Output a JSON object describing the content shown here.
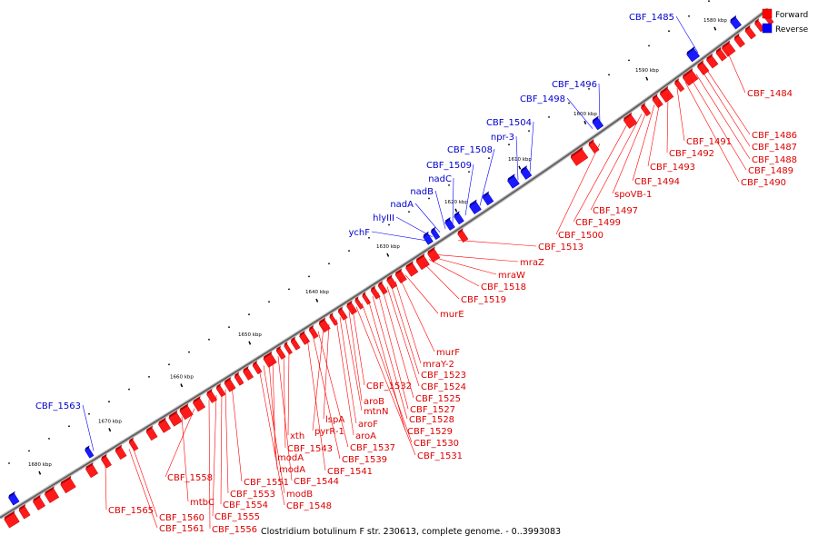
{
  "caption": "Clostridium botulinum F str. 230613, complete genome. - 0..3993083",
  "legend": {
    "forward": {
      "label": "Forward",
      "color": "#ff0000"
    },
    "reverse": {
      "label": "Reverse",
      "color": "#0000ff"
    }
  },
  "kbp_ticks": [
    "1580 kbp",
    "1590 kbp",
    "1600 kbp",
    "1610 kbp",
    "1620 kbp",
    "1630 kbp",
    "1640 kbp",
    "1650 kbp",
    "1660 kbp",
    "1670 kbp",
    "1680 kbp"
  ],
  "reverse_genes": [
    {
      "label": "CBF_1485"
    },
    {
      "label": "CBF_1496"
    },
    {
      "label": "CBF_1498"
    },
    {
      "label": "CBF_1504"
    },
    {
      "label": "npr-3"
    },
    {
      "label": "CBF_1508"
    },
    {
      "label": "CBF_1509"
    },
    {
      "label": "nadC"
    },
    {
      "label": "nadB"
    },
    {
      "label": "nadA"
    },
    {
      "label": "hlyIII"
    },
    {
      "label": "ychF"
    },
    {
      "label": "CBF_1563"
    }
  ],
  "forward_genes": [
    {
      "label": "CBF_1484"
    },
    {
      "label": "CBF_1486"
    },
    {
      "label": "CBF_1487"
    },
    {
      "label": "CBF_1488"
    },
    {
      "label": "CBF_1489"
    },
    {
      "label": "CBF_1490"
    },
    {
      "label": "CBF_1491"
    },
    {
      "label": "CBF_1492"
    },
    {
      "label": "CBF_1493"
    },
    {
      "label": "CBF_1494"
    },
    {
      "label": "spoVB-1"
    },
    {
      "label": "CBF_1497"
    },
    {
      "label": "CBF_1499"
    },
    {
      "label": "CBF_1500"
    },
    {
      "label": "CBF_1513"
    },
    {
      "label": "mraZ"
    },
    {
      "label": "mraW"
    },
    {
      "label": "CBF_1518"
    },
    {
      "label": "CBF_1519"
    },
    {
      "label": "murE"
    },
    {
      "label": "murF"
    },
    {
      "label": "mraY-2"
    },
    {
      "label": "CBF_1523"
    },
    {
      "label": "CBF_1524"
    },
    {
      "label": "CBF_1525"
    },
    {
      "label": "CBF_1527"
    },
    {
      "label": "CBF_1528"
    },
    {
      "label": "CBF_1529"
    },
    {
      "label": "CBF_1530"
    },
    {
      "label": "CBF_1531"
    },
    {
      "label": "CBF_1532"
    },
    {
      "label": "aroB"
    },
    {
      "label": "mtnN"
    },
    {
      "label": "aroF"
    },
    {
      "label": "aroA"
    },
    {
      "label": "lspA"
    },
    {
      "label": "pyrR-1"
    },
    {
      "label": "CBF_1537"
    },
    {
      "label": "CBF_1539"
    },
    {
      "label": "CBF_1541"
    },
    {
      "label": "xth"
    },
    {
      "label": "CBF_1543"
    },
    {
      "label": "CBF_1544"
    },
    {
      "label": "modA"
    },
    {
      "label": "modA"
    },
    {
      "label": "modB"
    },
    {
      "label": "CBF_1548"
    },
    {
      "label": "CBF_1551"
    },
    {
      "label": "CBF_1553"
    },
    {
      "label": "CBF_1554"
    },
    {
      "label": "CBF_1555"
    },
    {
      "label": "CBF_1556"
    },
    {
      "label": "CBF_1558"
    },
    {
      "label": "mtbC"
    },
    {
      "label": "CBF_1560"
    },
    {
      "label": "CBF_1561"
    },
    {
      "label": "CBF_1565"
    }
  ]
}
